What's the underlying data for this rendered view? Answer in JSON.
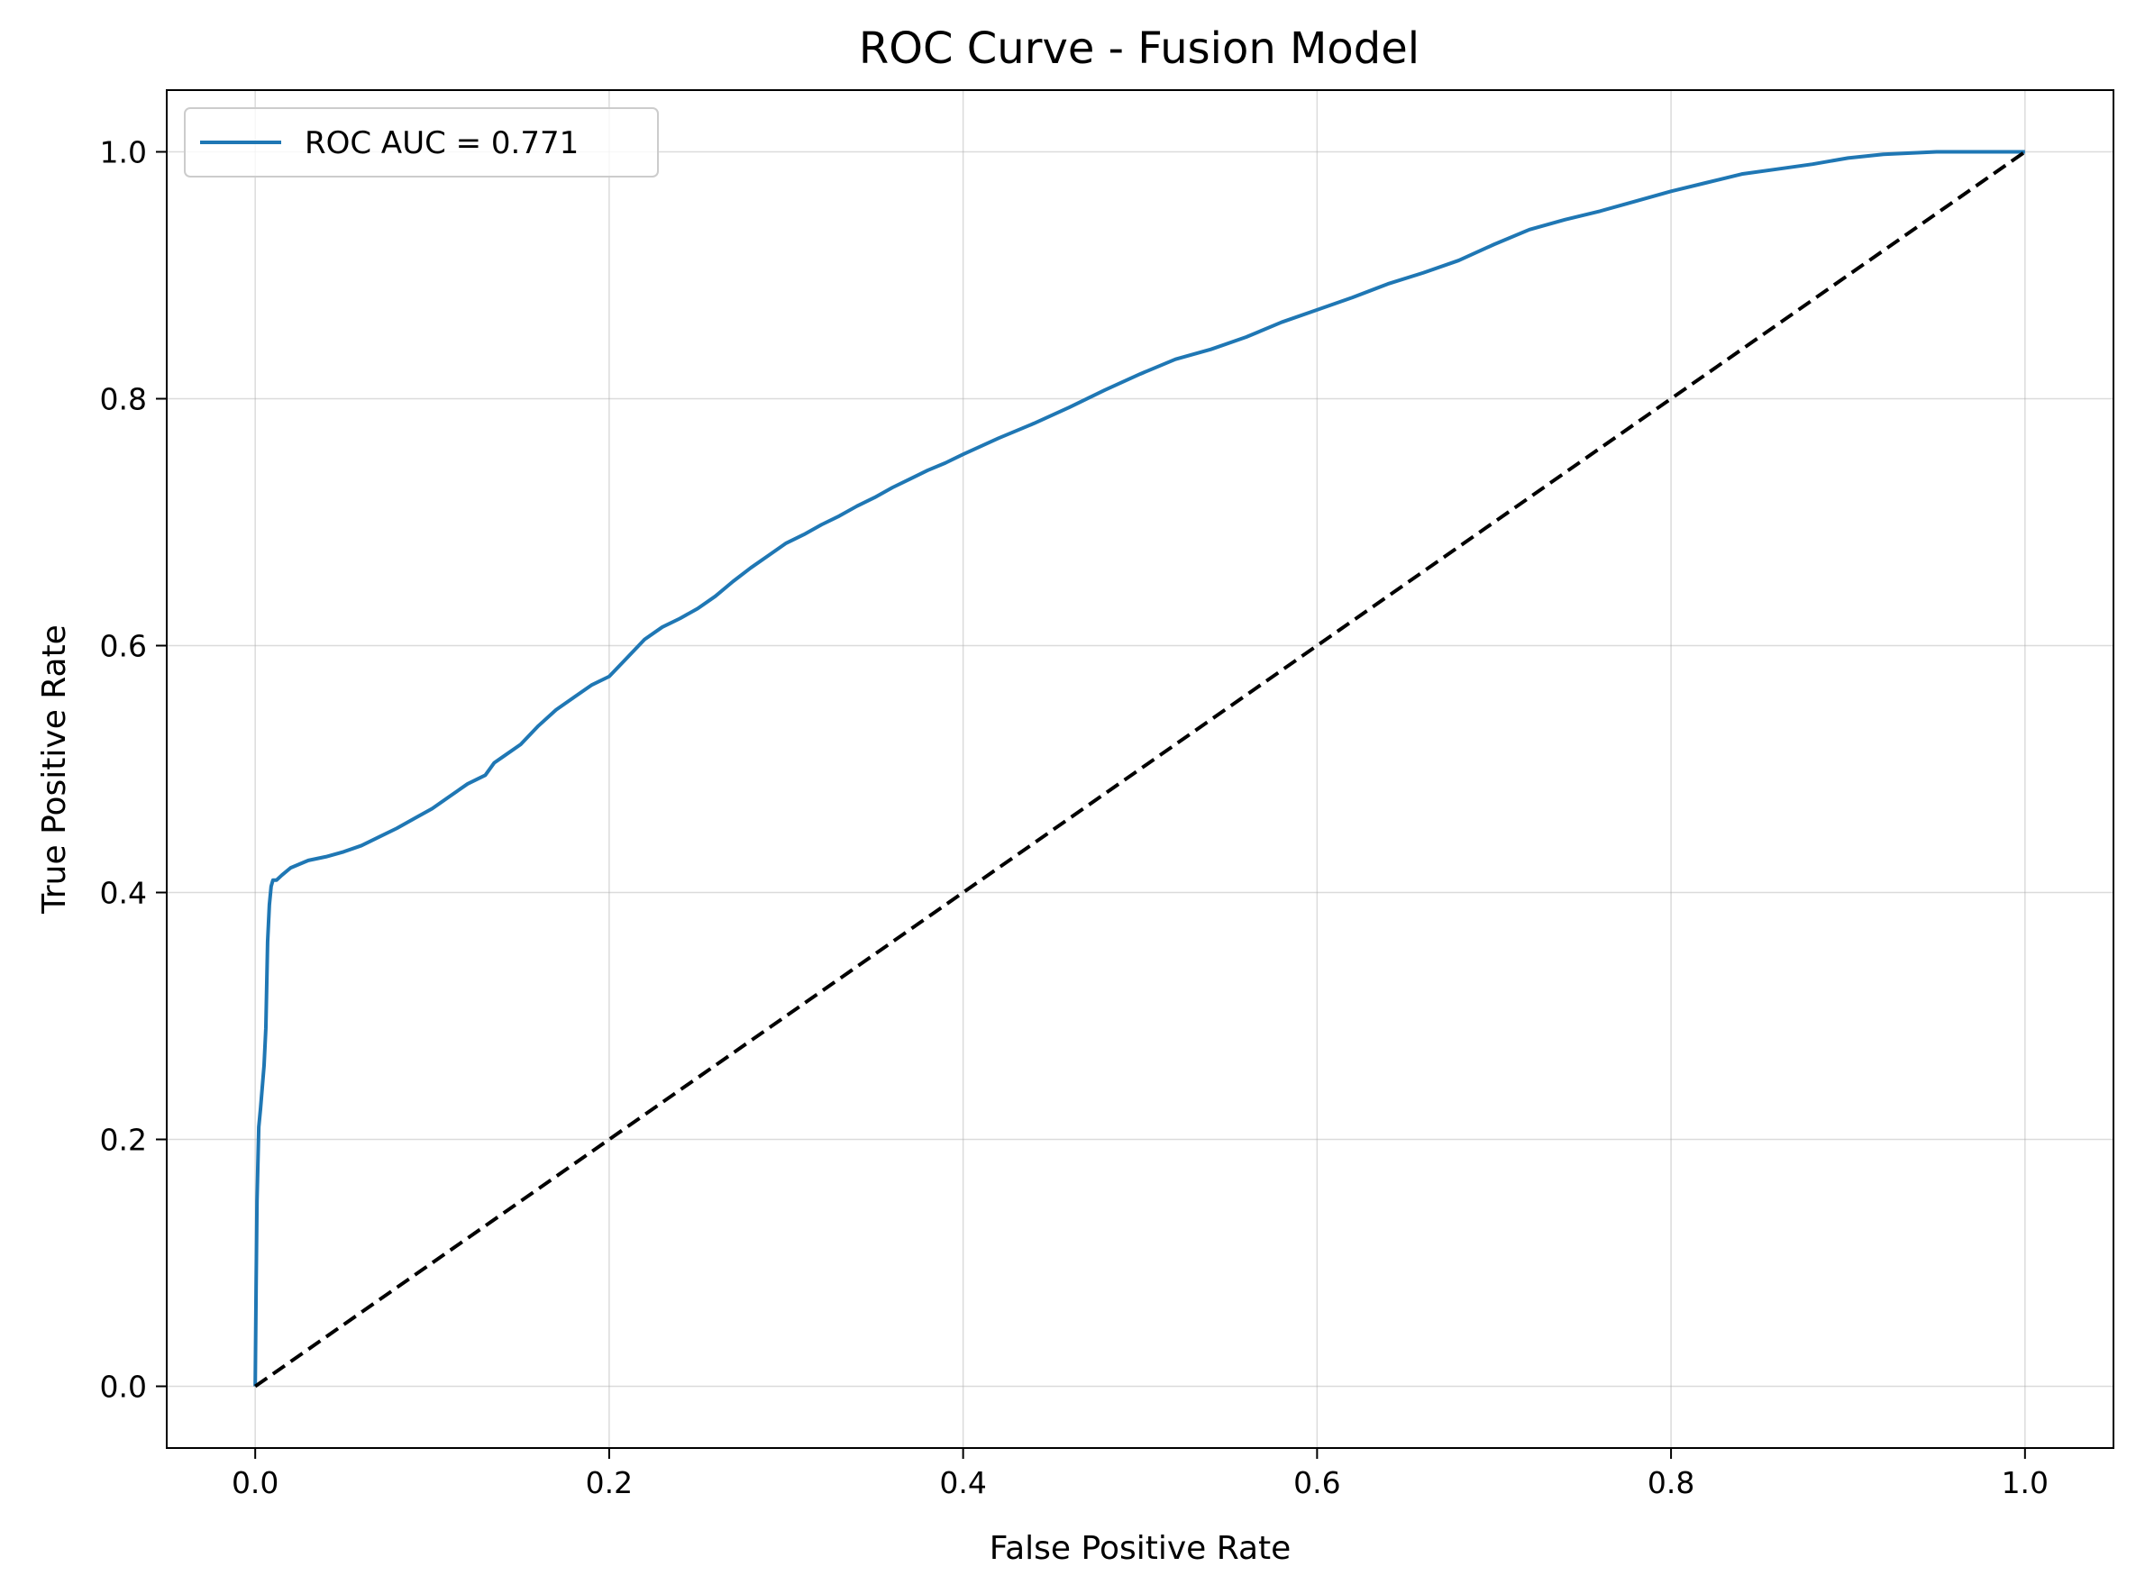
{
  "chart_data": {
    "type": "line",
    "title": "ROC Curve - Fusion Model",
    "xlabel": "False Positive Rate",
    "ylabel": "True Positive Rate",
    "xlim": [
      -0.05,
      1.05
    ],
    "ylim": [
      -0.05,
      1.05
    ],
    "xticks": [
      0.0,
      0.2,
      0.4,
      0.6,
      0.8,
      1.0
    ],
    "xtick_labels": [
      "0.0",
      "0.2",
      "0.4",
      "0.6",
      "0.8",
      "1.0"
    ],
    "yticks": [
      0.0,
      0.2,
      0.4,
      0.6,
      0.8,
      1.0
    ],
    "ytick_labels": [
      "0.0",
      "0.2",
      "0.4",
      "0.6",
      "0.8",
      "1.0"
    ],
    "grid": true,
    "legend": {
      "placement": "upper-left",
      "entries": [
        "ROC AUC = 0.771"
      ]
    },
    "series": [
      {
        "name": "ROC AUC = 0.771",
        "color": "#1f77b4",
        "style": "solid",
        "x": [
          0.0,
          0.0005,
          0.001,
          0.002,
          0.003,
          0.005,
          0.006,
          0.007,
          0.008,
          0.009,
          0.01,
          0.012,
          0.015,
          0.02,
          0.025,
          0.03,
          0.04,
          0.05,
          0.06,
          0.07,
          0.08,
          0.09,
          0.1,
          0.11,
          0.12,
          0.13,
          0.135,
          0.14,
          0.15,
          0.16,
          0.17,
          0.18,
          0.19,
          0.2,
          0.21,
          0.22,
          0.23,
          0.24,
          0.25,
          0.26,
          0.27,
          0.28,
          0.29,
          0.3,
          0.31,
          0.32,
          0.33,
          0.34,
          0.35,
          0.36,
          0.37,
          0.38,
          0.39,
          0.4,
          0.42,
          0.44,
          0.46,
          0.48,
          0.5,
          0.52,
          0.54,
          0.56,
          0.58,
          0.6,
          0.62,
          0.64,
          0.66,
          0.68,
          0.7,
          0.72,
          0.74,
          0.76,
          0.78,
          0.8,
          0.82,
          0.84,
          0.86,
          0.88,
          0.9,
          0.92,
          0.95,
          0.98,
          1.0
        ],
        "y": [
          0.0,
          0.08,
          0.15,
          0.21,
          0.225,
          0.26,
          0.29,
          0.36,
          0.39,
          0.405,
          0.41,
          0.41,
          0.414,
          0.42,
          0.423,
          0.426,
          0.429,
          0.433,
          0.438,
          0.445,
          0.452,
          0.46,
          0.468,
          0.478,
          0.488,
          0.495,
          0.505,
          0.51,
          0.52,
          0.535,
          0.548,
          0.558,
          0.568,
          0.575,
          0.59,
          0.605,
          0.615,
          0.622,
          0.63,
          0.64,
          0.652,
          0.663,
          0.673,
          0.683,
          0.69,
          0.698,
          0.705,
          0.713,
          0.72,
          0.728,
          0.735,
          0.742,
          0.748,
          0.755,
          0.768,
          0.78,
          0.793,
          0.807,
          0.82,
          0.832,
          0.84,
          0.85,
          0.862,
          0.872,
          0.882,
          0.893,
          0.902,
          0.912,
          0.925,
          0.937,
          0.945,
          0.952,
          0.96,
          0.968,
          0.975,
          0.982,
          0.986,
          0.99,
          0.995,
          0.998,
          1.0,
          1.0,
          1.0
        ]
      },
      {
        "color": "#000000",
        "style": "dashed",
        "x": [
          0.0,
          1.0
        ],
        "y": [
          0.0,
          1.0
        ]
      }
    ]
  }
}
